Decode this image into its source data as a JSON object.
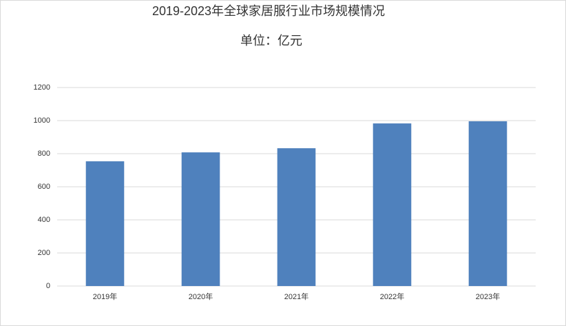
{
  "chart_data": {
    "type": "bar",
    "title": "2019-2023年全球家居服行业市场规模情况",
    "subtitle": "单位：亿元",
    "categories": [
      "2019年",
      "2020年",
      "2021年",
      "2022年",
      "2023年"
    ],
    "values": [
      754,
      808,
      833,
      983,
      996
    ],
    "color": "#4f81bd",
    "ylim": [
      0,
      1200
    ],
    "yticks": [
      0,
      200,
      400,
      600,
      800,
      1000,
      1200
    ],
    "grid": true
  }
}
